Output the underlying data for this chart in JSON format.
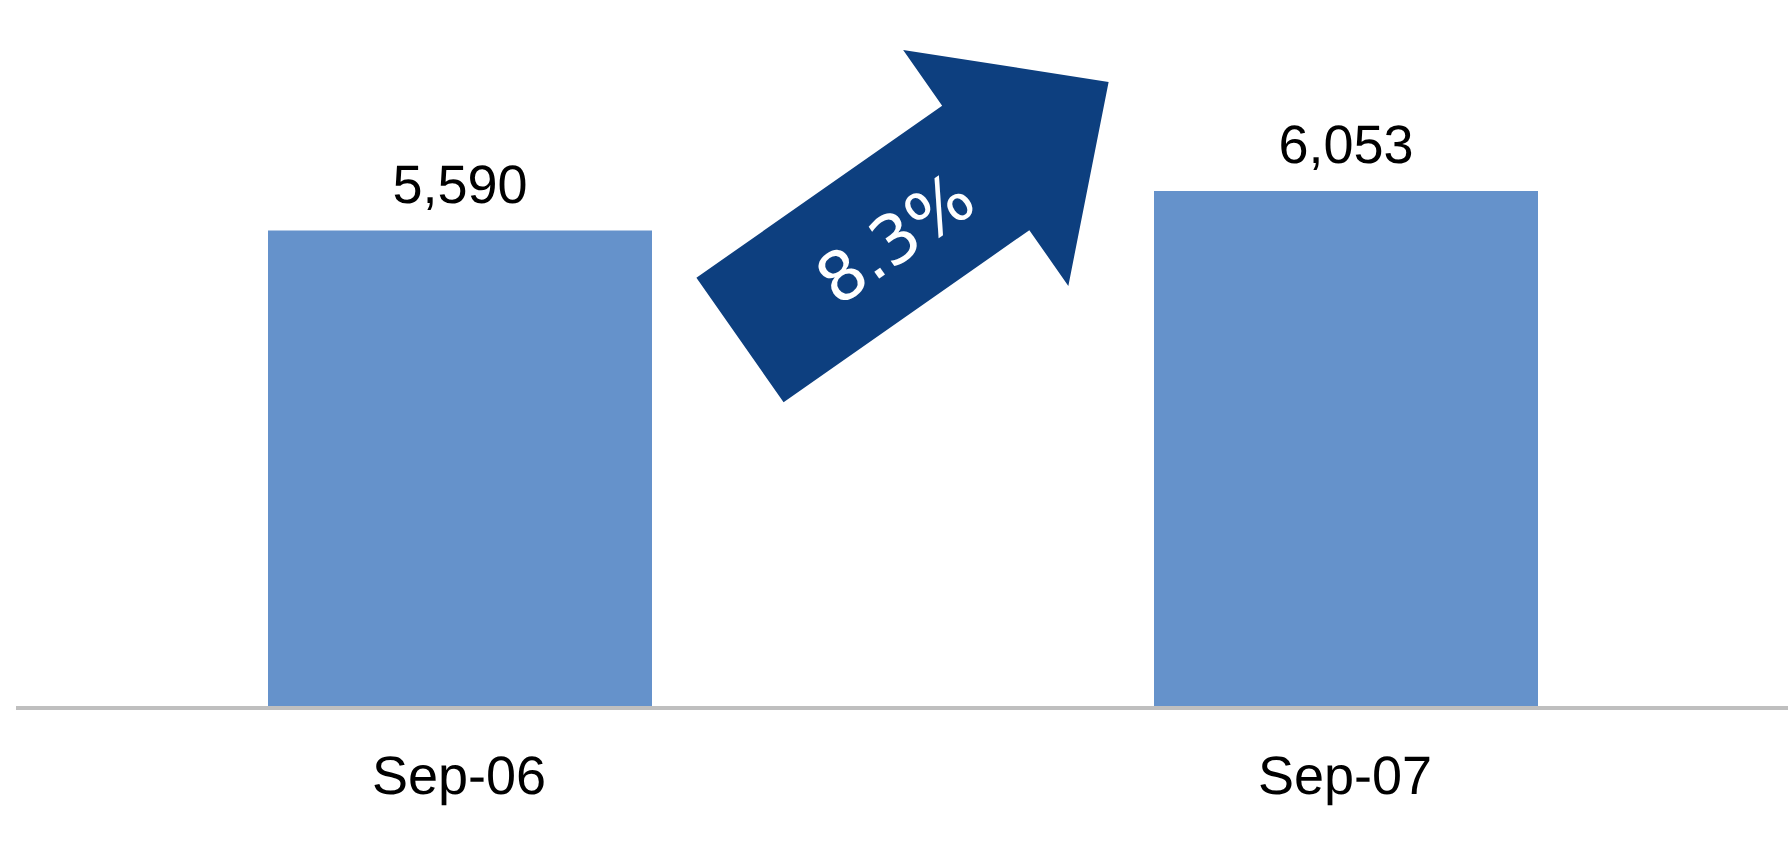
{
  "chart_data": {
    "type": "bar",
    "categories": [
      "Sep-06",
      "Sep-07"
    ],
    "values": [
      5590,
      6053
    ],
    "color": "#6592cb",
    "value_labels": [
      "5,590",
      "6,053"
    ],
    "tick_labels": "x",
    "annotations": [
      "8.3%"
    ]
  }
}
